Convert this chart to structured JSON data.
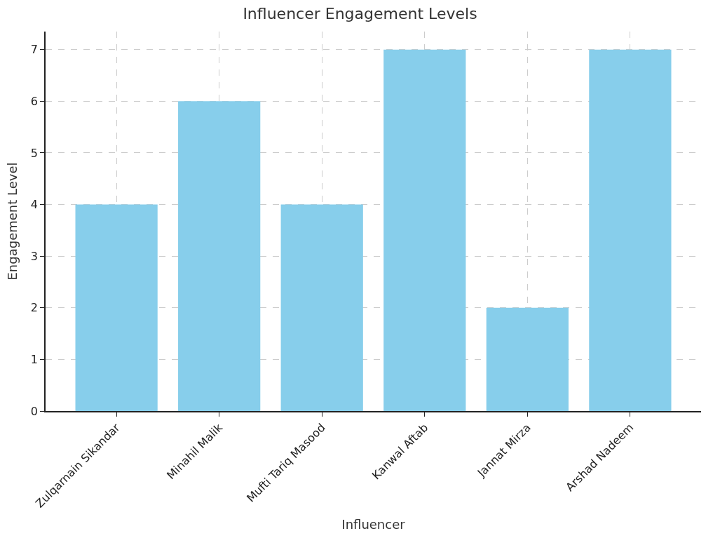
{
  "chart_data": {
    "type": "bar",
    "title": "Influencer Engagement Levels",
    "xlabel": "Influencer",
    "ylabel": "Engagement Level",
    "categories": [
      "Zulqarnain Sikandar",
      "Minahil Malik",
      "Mufti Tariq Masood",
      "Kanwal Aftab",
      "Jannat Mirza",
      "Arshad Nadeem"
    ],
    "values": [
      4,
      6,
      4,
      7,
      2,
      7
    ],
    "color": "#87ceeb",
    "ylim": [
      0,
      7.35
    ],
    "yticks": [
      0,
      1,
      2,
      3,
      4,
      5,
      6,
      7
    ],
    "grid": true
  }
}
